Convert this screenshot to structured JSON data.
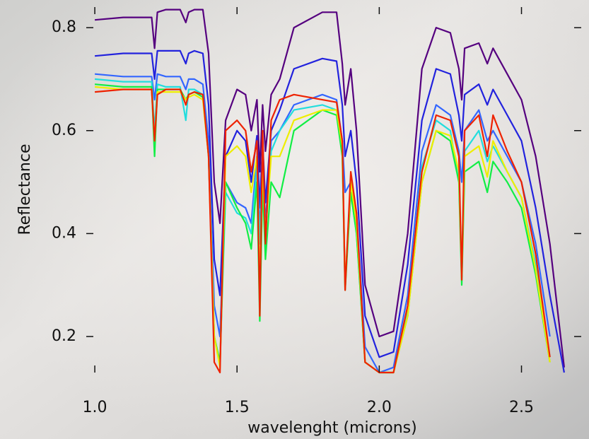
{
  "chart_data": {
    "type": "line",
    "x_label": "wavelenght (microns)",
    "y_label": "Reflectance",
    "x": [
      1.0,
      1.1,
      1.2,
      1.21,
      1.22,
      1.25,
      1.3,
      1.32,
      1.33,
      1.35,
      1.38,
      1.4,
      1.42,
      1.44,
      1.46,
      1.5,
      1.53,
      1.55,
      1.57,
      1.58,
      1.59,
      1.6,
      1.62,
      1.65,
      1.7,
      1.8,
      1.85,
      1.87,
      1.88,
      1.9,
      1.92,
      1.95,
      2.0,
      2.05,
      2.1,
      2.15,
      2.2,
      2.25,
      2.28,
      2.29,
      2.3,
      2.35,
      2.38,
      2.4,
      2.45,
      2.5,
      2.55,
      2.6,
      2.65
    ],
    "series": [
      {
        "color": "#55007f",
        "values": [
          0.815,
          0.82,
          0.82,
          0.76,
          0.83,
          0.835,
          0.835,
          0.81,
          0.83,
          0.835,
          0.835,
          0.75,
          0.5,
          0.42,
          0.62,
          0.68,
          0.67,
          0.6,
          0.66,
          0.52,
          0.65,
          0.56,
          0.67,
          0.7,
          0.8,
          0.83,
          0.83,
          0.73,
          0.65,
          0.72,
          0.6,
          0.3,
          0.2,
          0.21,
          0.4,
          0.72,
          0.8,
          0.79,
          0.72,
          0.66,
          0.76,
          0.77,
          0.73,
          0.76,
          0.71,
          0.66,
          0.55,
          0.38,
          0.14
        ]
      },
      {
        "color": "#2222dd",
        "values": [
          0.745,
          0.75,
          0.75,
          0.7,
          0.755,
          0.755,
          0.755,
          0.73,
          0.75,
          0.755,
          0.75,
          0.65,
          0.35,
          0.28,
          0.55,
          0.6,
          0.58,
          0.5,
          0.59,
          0.45,
          0.58,
          0.46,
          0.6,
          0.64,
          0.72,
          0.74,
          0.735,
          0.65,
          0.55,
          0.6,
          0.5,
          0.24,
          0.16,
          0.17,
          0.34,
          0.62,
          0.72,
          0.71,
          0.63,
          0.58,
          0.67,
          0.69,
          0.65,
          0.68,
          0.63,
          0.58,
          0.45,
          0.28,
          0.13
        ]
      },
      {
        "color": "#3366ff",
        "values": [
          0.71,
          0.705,
          0.705,
          0.66,
          0.71,
          0.705,
          0.705,
          0.68,
          0.7,
          0.7,
          0.69,
          0.58,
          0.26,
          0.2,
          0.5,
          0.46,
          0.45,
          0.42,
          0.55,
          0.4,
          0.55,
          0.42,
          0.58,
          0.6,
          0.65,
          0.67,
          0.66,
          0.58,
          0.48,
          0.5,
          0.44,
          0.18,
          0.13,
          0.14,
          0.28,
          0.56,
          0.65,
          0.63,
          0.56,
          0.5,
          0.6,
          0.64,
          0.58,
          0.6,
          0.55,
          0.5,
          0.38,
          0.2,
          null
        ]
      },
      {
        "color": "#22dddd",
        "values": [
          0.7,
          0.695,
          0.695,
          0.6,
          0.69,
          0.685,
          0.685,
          0.62,
          0.68,
          0.68,
          0.67,
          0.55,
          0.2,
          0.15,
          0.48,
          0.44,
          0.43,
          0.4,
          0.53,
          0.38,
          0.53,
          0.4,
          0.56,
          0.6,
          0.64,
          0.65,
          0.64,
          0.56,
          0.3,
          0.48,
          0.4,
          0.15,
          0.13,
          0.13,
          0.25,
          0.53,
          0.62,
          0.6,
          0.5,
          0.33,
          0.56,
          0.6,
          0.54,
          0.57,
          0.52,
          0.47,
          0.34,
          0.16,
          null
        ]
      },
      {
        "color": "#11ee44",
        "values": [
          0.69,
          0.685,
          0.685,
          0.55,
          0.68,
          0.68,
          0.68,
          0.66,
          0.67,
          0.675,
          0.665,
          0.55,
          0.2,
          0.15,
          0.5,
          0.45,
          0.42,
          0.37,
          0.5,
          0.23,
          0.5,
          0.35,
          0.5,
          0.47,
          0.6,
          0.64,
          0.63,
          0.55,
          0.29,
          0.48,
          0.4,
          0.15,
          0.13,
          0.13,
          0.24,
          0.5,
          0.6,
          0.58,
          0.5,
          0.3,
          0.52,
          0.54,
          0.48,
          0.54,
          0.5,
          0.45,
          0.32,
          0.15,
          null
        ]
      },
      {
        "color": "#eeee00",
        "values": [
          0.685,
          0.68,
          0.68,
          0.58,
          0.675,
          0.675,
          0.675,
          0.66,
          0.665,
          0.67,
          0.66,
          0.55,
          0.2,
          0.14,
          0.55,
          0.57,
          0.55,
          0.48,
          0.55,
          0.3,
          0.53,
          0.4,
          0.55,
          0.55,
          0.62,
          0.64,
          0.64,
          0.57,
          0.3,
          0.5,
          0.42,
          0.15,
          0.13,
          0.13,
          0.24,
          0.5,
          0.6,
          0.59,
          0.52,
          0.32,
          0.55,
          0.57,
          0.51,
          0.58,
          0.52,
          0.47,
          0.33,
          0.15,
          null
        ]
      },
      {
        "color": "#ee2200",
        "values": [
          0.675,
          0.68,
          0.68,
          0.58,
          0.67,
          0.68,
          0.68,
          0.65,
          0.67,
          0.675,
          0.67,
          0.55,
          0.15,
          0.13,
          0.6,
          0.62,
          0.6,
          0.52,
          0.58,
          0.24,
          0.6,
          0.38,
          0.62,
          0.66,
          0.67,
          0.66,
          0.655,
          0.58,
          0.29,
          0.52,
          0.44,
          0.15,
          0.13,
          0.13,
          0.26,
          0.52,
          0.63,
          0.62,
          0.55,
          0.31,
          0.6,
          0.63,
          0.55,
          0.63,
          0.56,
          0.5,
          0.36,
          0.16,
          null
        ]
      }
    ],
    "xlim": [
      0.97,
      2.71
    ],
    "ylim": [
      0.13,
      0.84
    ],
    "xticks": [
      {
        "value": 1,
        "label": "1.0"
      },
      1.5,
      {
        "value": 2,
        "label": "2.0"
      },
      2.5
    ],
    "yticks": [
      0.2,
      0.4,
      0.6,
      0.8
    ]
  }
}
